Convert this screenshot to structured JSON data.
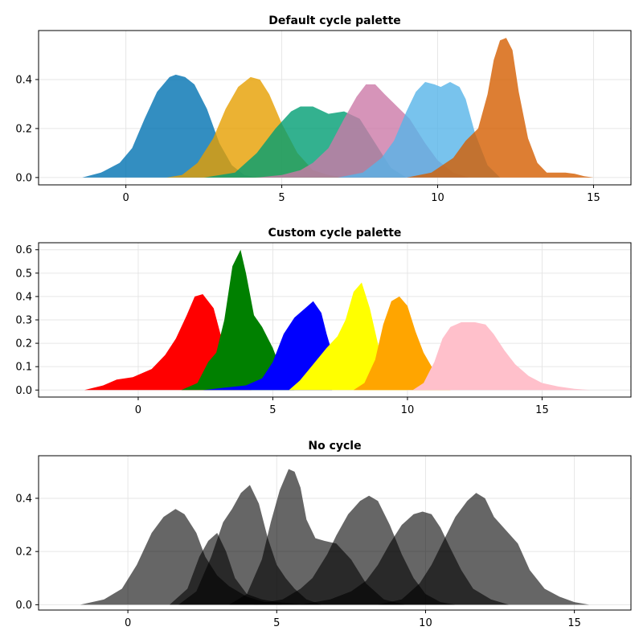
{
  "chart_data": [
    {
      "type": "area",
      "title": "Default cycle palette",
      "xlim": [
        -2.8,
        16.2
      ],
      "ylim": [
        -0.03,
        0.6
      ],
      "x_ticks": [
        0,
        5,
        10,
        15
      ],
      "y_ticks": [
        0.0,
        0.2,
        0.4
      ],
      "y_tick_labels": [
        "0.0",
        "0.2",
        "0.4"
      ],
      "grid": true,
      "series": [
        {
          "color": "#0072b2",
          "opacity": 0.8,
          "x": [
            -1.4,
            -0.8,
            -0.2,
            0.2,
            0.6,
            1.0,
            1.4,
            1.6,
            1.9,
            2.2,
            2.6,
            3.0,
            3.4,
            3.8,
            4.2
          ],
          "y": [
            0,
            0.02,
            0.06,
            0.12,
            0.24,
            0.35,
            0.41,
            0.42,
            0.41,
            0.38,
            0.28,
            0.14,
            0.05,
            0.01,
            0
          ]
        },
        {
          "color": "#e69f00",
          "opacity": 0.8,
          "x": [
            1.3,
            1.8,
            2.3,
            2.8,
            3.2,
            3.6,
            4.0,
            4.3,
            4.6,
            5.0,
            5.5,
            6.0,
            6.5,
            7.0
          ],
          "y": [
            0,
            0.01,
            0.06,
            0.16,
            0.28,
            0.37,
            0.41,
            0.4,
            0.34,
            0.22,
            0.1,
            0.03,
            0.01,
            0
          ]
        },
        {
          "color": "#009e73",
          "opacity": 0.8,
          "x": [
            2.5,
            3.5,
            4.2,
            4.8,
            5.3,
            5.6,
            6.0,
            6.5,
            7.0,
            7.5,
            8.0,
            8.5,
            9.0
          ],
          "y": [
            0,
            0.02,
            0.1,
            0.2,
            0.27,
            0.29,
            0.29,
            0.26,
            0.27,
            0.24,
            0.14,
            0.04,
            0
          ]
        },
        {
          "color": "#cc79a7",
          "opacity": 0.8,
          "x": [
            4.2,
            5.0,
            5.6,
            6.0,
            6.5,
            7.0,
            7.4,
            7.7,
            8.0,
            8.3,
            8.7,
            9.1,
            9.6,
            10.0,
            10.5,
            11.0
          ],
          "y": [
            0,
            0.01,
            0.03,
            0.06,
            0.12,
            0.24,
            0.33,
            0.38,
            0.38,
            0.34,
            0.29,
            0.24,
            0.14,
            0.07,
            0.02,
            0
          ]
        },
        {
          "color": "#56b4e9",
          "opacity": 0.8,
          "x": [
            6.8,
            7.6,
            8.2,
            8.6,
            9.0,
            9.3,
            9.6,
            9.9,
            10.1,
            10.4,
            10.7,
            10.9,
            11.2,
            11.6,
            12.0
          ],
          "y": [
            0,
            0.02,
            0.08,
            0.15,
            0.27,
            0.35,
            0.39,
            0.38,
            0.37,
            0.39,
            0.37,
            0.32,
            0.18,
            0.05,
            0
          ]
        },
        {
          "color": "#d55e00",
          "opacity": 0.8,
          "x": [
            9.0,
            9.8,
            10.5,
            10.9,
            11.3,
            11.6,
            11.8,
            12.0,
            12.2,
            12.4,
            12.6,
            12.9,
            13.2,
            13.5,
            13.8,
            14.1,
            14.4,
            14.7,
            15.0
          ],
          "y": [
            0,
            0.02,
            0.08,
            0.15,
            0.2,
            0.34,
            0.48,
            0.56,
            0.57,
            0.52,
            0.35,
            0.16,
            0.06,
            0.02,
            0.02,
            0.02,
            0.015,
            0.005,
            0
          ]
        }
      ]
    },
    {
      "type": "area",
      "title": "Custom cycle palette",
      "xlim": [
        -3.7,
        18.3
      ],
      "ylim": [
        -0.03,
        0.63
      ],
      "x_ticks": [
        0,
        5,
        10,
        15
      ],
      "y_ticks": [
        0.0,
        0.1,
        0.2,
        0.3,
        0.4,
        0.5,
        0.6
      ],
      "y_tick_labels": [
        "0.0",
        "0.1",
        "0.2",
        "0.3",
        "0.4",
        "0.5",
        "0.6"
      ],
      "grid": true,
      "series": [
        {
          "color": "#ff0000",
          "opacity": 1,
          "x": [
            -2.0,
            -1.3,
            -0.8,
            -0.2,
            0.5,
            1.0,
            1.4,
            1.8,
            2.1,
            2.4,
            2.8,
            3.1,
            3.4,
            3.8,
            4.2
          ],
          "y": [
            0,
            0.02,
            0.045,
            0.055,
            0.09,
            0.15,
            0.22,
            0.32,
            0.4,
            0.41,
            0.35,
            0.22,
            0.1,
            0.03,
            0
          ]
        },
        {
          "color": "#008000",
          "opacity": 1,
          "x": [
            1.6,
            2.2,
            2.6,
            2.9,
            3.2,
            3.5,
            3.8,
            4.0,
            4.3,
            4.6,
            5.0,
            5.4,
            5.8
          ],
          "y": [
            0,
            0.03,
            0.12,
            0.16,
            0.3,
            0.53,
            0.6,
            0.5,
            0.32,
            0.27,
            0.18,
            0.06,
            0
          ]
        },
        {
          "color": "#0000ff",
          "opacity": 1,
          "x": [
            2.4,
            3.2,
            4.0,
            4.6,
            5.0,
            5.4,
            5.8,
            6.2,
            6.5,
            6.8,
            7.0,
            7.2
          ],
          "y": [
            0,
            0.01,
            0.02,
            0.05,
            0.12,
            0.24,
            0.31,
            0.35,
            0.38,
            0.33,
            0.24,
            0.16
          ]
        },
        {
          "color": "#ffff00",
          "opacity": 1,
          "x": [
            5.6,
            6.0,
            6.5,
            7.0,
            7.4,
            7.7,
            8.0,
            8.3,
            8.6,
            8.9,
            9.2,
            9.5,
            10.0
          ],
          "y": [
            0,
            0.04,
            0.11,
            0.18,
            0.23,
            0.3,
            0.42,
            0.46,
            0.35,
            0.2,
            0.08,
            0.02,
            0
          ]
        },
        {
          "color": "#ffa500",
          "opacity": 1,
          "x": [
            8.0,
            8.4,
            8.8,
            9.1,
            9.4,
            9.7,
            10.0,
            10.3,
            10.6,
            10.9,
            11.3,
            11.6
          ],
          "y": [
            0,
            0.03,
            0.13,
            0.28,
            0.38,
            0.4,
            0.36,
            0.25,
            0.16,
            0.1,
            0.04,
            0
          ]
        },
        {
          "color": "#ffc0cb",
          "opacity": 1,
          "x": [
            10.2,
            10.6,
            11.0,
            11.3,
            11.6,
            12.0,
            12.5,
            12.9,
            13.2,
            13.6,
            14.0,
            14.5,
            15.0,
            15.6,
            16.2,
            16.8
          ],
          "y": [
            0,
            0.03,
            0.12,
            0.22,
            0.27,
            0.29,
            0.29,
            0.28,
            0.24,
            0.17,
            0.11,
            0.06,
            0.03,
            0.015,
            0.005,
            0
          ]
        }
      ]
    },
    {
      "type": "area",
      "title": "No cycle",
      "xlim": [
        -3.0,
        16.9
      ],
      "ylim": [
        -0.02,
        0.56
      ],
      "x_ticks": [
        0,
        5,
        10,
        15
      ],
      "y_ticks": [
        0.0,
        0.2,
        0.4
      ],
      "y_tick_labels": [
        "0.0",
        "0.2",
        "0.4"
      ],
      "grid": true,
      "series": [
        {
          "color": "#000000",
          "opacity": 0.6,
          "x": [
            -1.6,
            -0.8,
            -0.2,
            0.3,
            0.8,
            1.2,
            1.6,
            1.9,
            2.3,
            2.6,
            3.0,
            3.4,
            4.0,
            4.6,
            5.2
          ],
          "y": [
            0,
            0.02,
            0.06,
            0.15,
            0.27,
            0.33,
            0.36,
            0.34,
            0.27,
            0.18,
            0.11,
            0.07,
            0.03,
            0.01,
            0
          ]
        },
        {
          "color": "#000000",
          "opacity": 0.6,
          "x": [
            1.4,
            2.0,
            2.4,
            2.7,
            3.0,
            3.3,
            3.6,
            4.0,
            4.5,
            5.0,
            5.5,
            6.0
          ],
          "y": [
            0,
            0.06,
            0.18,
            0.24,
            0.27,
            0.2,
            0.1,
            0.04,
            0.02,
            0.01,
            0.005,
            0
          ]
        },
        {
          "color": "#000000",
          "opacity": 0.6,
          "x": [
            1.7,
            2.3,
            2.8,
            3.2,
            3.5,
            3.8,
            4.1,
            4.4,
            4.7,
            5.0,
            5.3,
            5.6,
            6.0,
            6.5
          ],
          "y": [
            0,
            0.05,
            0.18,
            0.31,
            0.36,
            0.42,
            0.45,
            0.38,
            0.25,
            0.15,
            0.1,
            0.06,
            0.02,
            0
          ]
        },
        {
          "color": "#000000",
          "opacity": 0.6,
          "x": [
            3.4,
            4.0,
            4.5,
            4.8,
            5.1,
            5.4,
            5.6,
            5.8,
            6.0,
            6.3,
            6.6,
            7.0,
            7.5,
            8.0,
            8.6,
            9.3
          ],
          "y": [
            0,
            0.04,
            0.17,
            0.31,
            0.43,
            0.51,
            0.5,
            0.44,
            0.32,
            0.25,
            0.24,
            0.23,
            0.17,
            0.08,
            0.02,
            0
          ]
        },
        {
          "color": "#000000",
          "opacity": 0.6,
          "x": [
            4.2,
            5.2,
            5.8,
            6.2,
            6.7,
            7.0,
            7.4,
            7.8,
            8.1,
            8.4,
            8.8,
            9.2,
            9.6,
            10.0,
            10.5,
            11.0
          ],
          "y": [
            0,
            0.02,
            0.06,
            0.1,
            0.19,
            0.26,
            0.34,
            0.39,
            0.41,
            0.39,
            0.3,
            0.19,
            0.1,
            0.04,
            0.01,
            0
          ]
        },
        {
          "color": "#000000",
          "opacity": 0.6,
          "x": [
            5.8,
            6.8,
            7.5,
            8.0,
            8.4,
            8.8,
            9.2,
            9.6,
            9.9,
            10.2,
            10.5,
            10.8,
            11.2,
            11.6,
            12.2,
            12.8
          ],
          "y": [
            0,
            0.02,
            0.05,
            0.09,
            0.15,
            0.23,
            0.3,
            0.34,
            0.35,
            0.34,
            0.29,
            0.22,
            0.13,
            0.06,
            0.02,
            0
          ]
        },
        {
          "color": "#000000",
          "opacity": 0.6,
          "x": [
            8.4,
            9.2,
            9.8,
            10.2,
            10.6,
            11.0,
            11.4,
            11.7,
            12.0,
            12.3,
            12.7,
            13.1,
            13.5,
            14.0,
            14.5,
            15.0,
            15.5
          ],
          "y": [
            0,
            0.02,
            0.08,
            0.15,
            0.24,
            0.33,
            0.39,
            0.42,
            0.4,
            0.33,
            0.28,
            0.23,
            0.13,
            0.06,
            0.03,
            0.01,
            0
          ]
        }
      ]
    }
  ]
}
